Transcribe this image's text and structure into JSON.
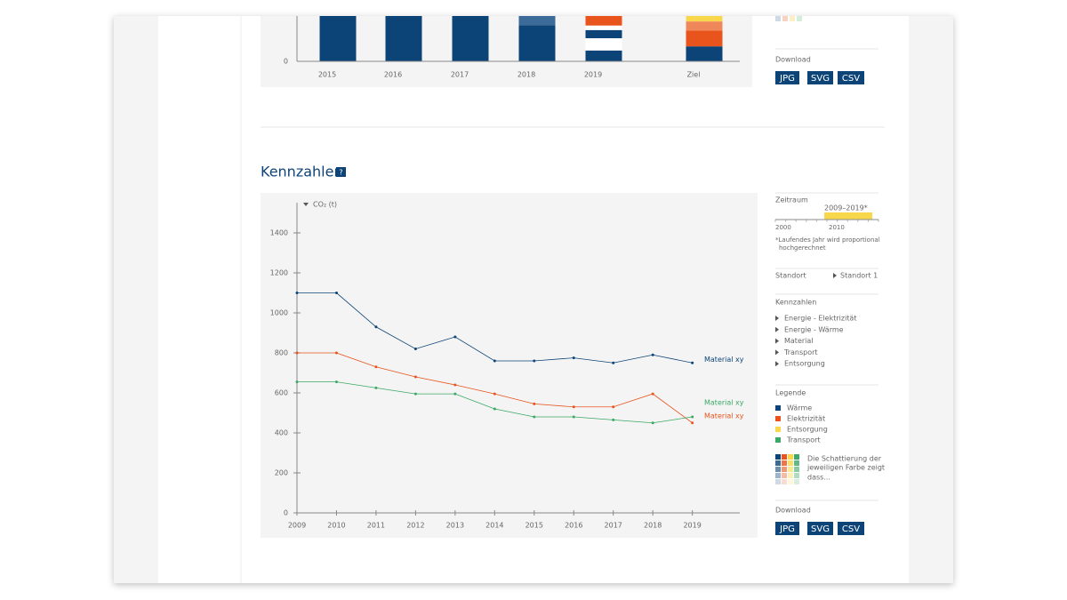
{
  "top_chart": {
    "type": "bar",
    "categories": [
      "2015",
      "2016",
      "2017",
      "2018",
      "2019",
      "Ziel"
    ],
    "ylim": [
      0,
      100
    ],
    "yticks": [
      0
    ],
    "bars": [
      {
        "segments": [
          {
            "color": "#0d4477",
            "value": 110
          }
        ]
      },
      {
        "segments": [
          {
            "color": "#0d4477",
            "value": 110
          }
        ]
      },
      {
        "segments": [
          {
            "color": "#0d4477",
            "value": 110
          }
        ]
      },
      {
        "segments": [
          {
            "color": "#0d4477",
            "value": 80
          },
          {
            "color": "#3d6b99",
            "value": 25
          }
        ]
      },
      {
        "segments": [
          {
            "color": "#0d4477",
            "value": 24
          },
          {
            "color": "#ffffff",
            "value": 27
          },
          {
            "color": "#0d4477",
            "value": 18
          },
          {
            "color": "#ffffff",
            "value": 10
          },
          {
            "color": "#e8541c",
            "value": 26
          }
        ]
      },
      {
        "segments": [
          {
            "color": "#0d4477",
            "value": 33
          },
          {
            "color": "#e8541c",
            "value": 35
          },
          {
            "color": "#f0875a",
            "value": 20
          },
          {
            "color": "#f8d84a",
            "value": 15
          }
        ]
      }
    ]
  },
  "top_download": {
    "label": "Download",
    "buttons": [
      "JPG",
      "SVG",
      "CSV"
    ]
  },
  "section": {
    "title": "Kennzahlen",
    "help": "?"
  },
  "chart_data": {
    "type": "line",
    "y_label": "CO₂ (t)",
    "x": [
      2009,
      2010,
      2011,
      2012,
      2013,
      2014,
      2015,
      2016,
      2017,
      2018,
      2019
    ],
    "xlim": [
      2009,
      2020.2
    ],
    "xticks": [
      2009,
      2010,
      2011,
      2012,
      2013,
      2014,
      2015,
      2016,
      2017,
      2018,
      2019
    ],
    "ylim": [
      0,
      1400
    ],
    "yticks": [
      0,
      200,
      400,
      600,
      800,
      1000,
      1200,
      1400
    ],
    "series": [
      {
        "name": "Material xy",
        "color": "#0d4477",
        "values": [
          1100,
          1100,
          930,
          820,
          880,
          760,
          760,
          775,
          750,
          790,
          750
        ]
      },
      {
        "name": "Material xy",
        "color": "#e8541c",
        "values": [
          800,
          800,
          730,
          680,
          640,
          595,
          545,
          530,
          530,
          595,
          450
        ]
      },
      {
        "name": "Material xy",
        "color": "#3aa866",
        "values": [
          655,
          655,
          625,
          595,
          595,
          520,
          480,
          480,
          465,
          450,
          480
        ]
      }
    ]
  },
  "sidebar": {
    "period": {
      "label": "Zeitraum",
      "range": "2009–2019*",
      "ticks": [
        "2000",
        "2010"
      ],
      "note": [
        "*Laufendes Jahr wird proportional",
        "hochgerechnet"
      ]
    },
    "location": {
      "label": "Standort",
      "value": "Standort 1"
    },
    "metrics": {
      "label": "Kennzahlen",
      "items": [
        "Energie - Elektrizität",
        "Energie - Wärme",
        "Material",
        "Transport",
        "Entsorgung"
      ]
    },
    "legend": {
      "label": "Legende",
      "items": [
        {
          "name": "Wärme",
          "color": "#0d4477"
        },
        {
          "name": "Elektrizität",
          "color": "#e8541c"
        },
        {
          "name": "Entsorgung",
          "color": "#f8d84a"
        },
        {
          "name": "Transport",
          "color": "#3aa866"
        }
      ],
      "note": [
        "Die Schattierung der",
        "jeweiligen Farbe zeigt",
        "dass..."
      ]
    },
    "download": {
      "label": "Download",
      "buttons": [
        "JPG",
        "SVG",
        "CSV"
      ]
    }
  }
}
